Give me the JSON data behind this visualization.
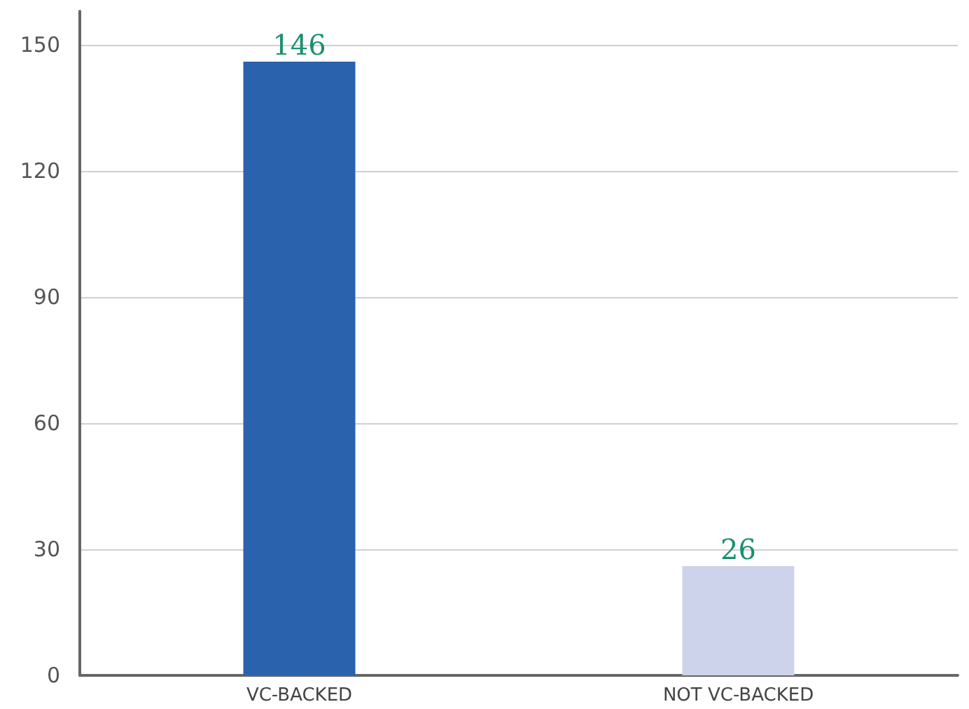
{
  "chart_data": {
    "type": "bar",
    "categories": [
      "VC-BACKED",
      "NOT VC-BACKED"
    ],
    "values": [
      146,
      26
    ],
    "colors": [
      "#2a62ad",
      "#cdd3ea"
    ],
    "ylim": [
      0,
      158
    ],
    "yticks": [
      0,
      30,
      60,
      90,
      120,
      150
    ],
    "grid": "y",
    "data_labels": true
  }
}
